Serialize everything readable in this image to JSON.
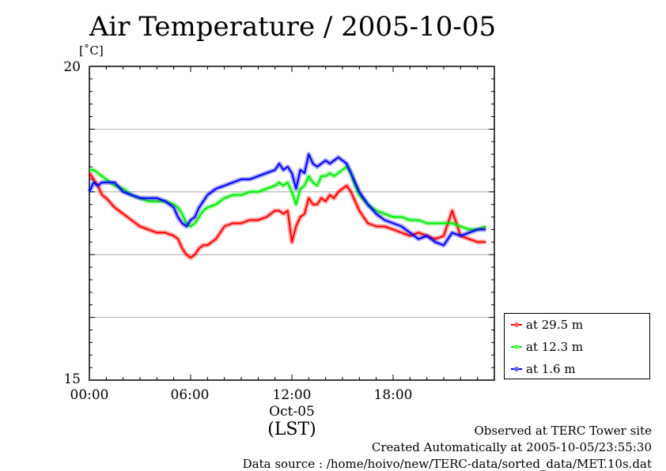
{
  "chart_data": {
    "type": "line",
    "title": "Air Temperature / 2005-10-05",
    "ylabel": "[˚C]",
    "xlabel": "(LST)",
    "xlim": [
      0,
      24
    ],
    "ylim": [
      15,
      20
    ],
    "x_tick_labels": [
      "00:00",
      "06:00",
      "12:00",
      "18:00"
    ],
    "x_tick_values": [
      0,
      6,
      12,
      18
    ],
    "date_label": "Oct-05",
    "y_tick_labels": [
      "15",
      "20"
    ],
    "grid": true,
    "legend_position": "bottom-right, outside plot",
    "x": [
      0,
      0.25,
      0.5,
      0.75,
      1,
      1.5,
      2,
      2.5,
      3,
      3.5,
      4,
      4.5,
      5,
      5.25,
      5.5,
      5.75,
      6,
      6.25,
      6.5,
      6.75,
      7,
      7.5,
      8,
      8.5,
      9,
      9.5,
      10,
      10.5,
      11,
      11.25,
      11.5,
      11.75,
      12,
      12.25,
      12.5,
      12.75,
      13,
      13.25,
      13.5,
      13.75,
      14,
      14.25,
      14.5,
      14.75,
      15,
      15.25,
      15.5,
      15.75,
      16,
      16.5,
      17,
      17.5,
      18,
      18.5,
      19,
      19.5,
      20,
      20.5,
      21,
      21.5,
      22,
      22.5,
      23,
      23.5
    ],
    "series": [
      {
        "name": "at 29.5 m",
        "color": "#ff0000",
        "values": [
          18.3,
          18.2,
          18.1,
          17.95,
          17.9,
          17.75,
          17.65,
          17.55,
          17.45,
          17.4,
          17.35,
          17.35,
          17.3,
          17.25,
          17.1,
          17.0,
          16.95,
          17.0,
          17.1,
          17.15,
          17.15,
          17.25,
          17.45,
          17.5,
          17.5,
          17.55,
          17.55,
          17.6,
          17.7,
          17.7,
          17.65,
          17.7,
          17.2,
          17.45,
          17.6,
          17.65,
          17.9,
          17.8,
          17.8,
          17.9,
          17.85,
          17.95,
          17.9,
          18.0,
          18.05,
          18.1,
          18.0,
          17.85,
          17.7,
          17.5,
          17.45,
          17.45,
          17.4,
          17.35,
          17.3,
          17.35,
          17.3,
          17.25,
          17.3,
          17.7,
          17.3,
          17.25,
          17.2,
          17.2
        ]
      },
      {
        "name": "at 12.3 m",
        "color": "#00ee00",
        "values": [
          18.35,
          18.35,
          18.3,
          18.25,
          18.2,
          18.1,
          18.05,
          17.95,
          17.9,
          17.85,
          17.85,
          17.85,
          17.8,
          17.75,
          17.65,
          17.5,
          17.45,
          17.5,
          17.6,
          17.7,
          17.75,
          17.8,
          17.9,
          17.95,
          17.95,
          18.0,
          18.0,
          18.05,
          18.1,
          18.15,
          18.1,
          18.15,
          18.0,
          17.8,
          18.05,
          18.1,
          18.25,
          18.15,
          18.1,
          18.25,
          18.25,
          18.3,
          18.25,
          18.3,
          18.35,
          18.4,
          18.3,
          18.1,
          17.95,
          17.8,
          17.7,
          17.65,
          17.6,
          17.6,
          17.55,
          17.55,
          17.5,
          17.5,
          17.5,
          17.5,
          17.45,
          17.4,
          17.4,
          17.45
        ]
      },
      {
        "name": "at 1.6 m",
        "color": "#0000ff",
        "values": [
          18.0,
          18.15,
          18.1,
          18.15,
          18.15,
          18.15,
          18.0,
          17.95,
          17.9,
          17.9,
          17.9,
          17.85,
          17.75,
          17.6,
          17.5,
          17.45,
          17.55,
          17.6,
          17.75,
          17.85,
          17.95,
          18.05,
          18.1,
          18.15,
          18.2,
          18.2,
          18.25,
          18.3,
          18.35,
          18.45,
          18.35,
          18.4,
          18.3,
          18.05,
          18.35,
          18.3,
          18.6,
          18.45,
          18.4,
          18.45,
          18.5,
          18.45,
          18.5,
          18.55,
          18.5,
          18.45,
          18.3,
          18.15,
          18.0,
          17.8,
          17.65,
          17.55,
          17.5,
          17.45,
          17.35,
          17.25,
          17.3,
          17.2,
          17.15,
          17.35,
          17.3,
          17.35,
          17.4,
          17.4
        ]
      }
    ]
  },
  "footer": {
    "line1": "Observed at TERC Tower site",
    "line2": "Created Automatically at 2005-10-05/23:55:30",
    "line3": "Data source : /home/hoivo/new/TERC-data/sorted_data/MET.10s.dat"
  }
}
